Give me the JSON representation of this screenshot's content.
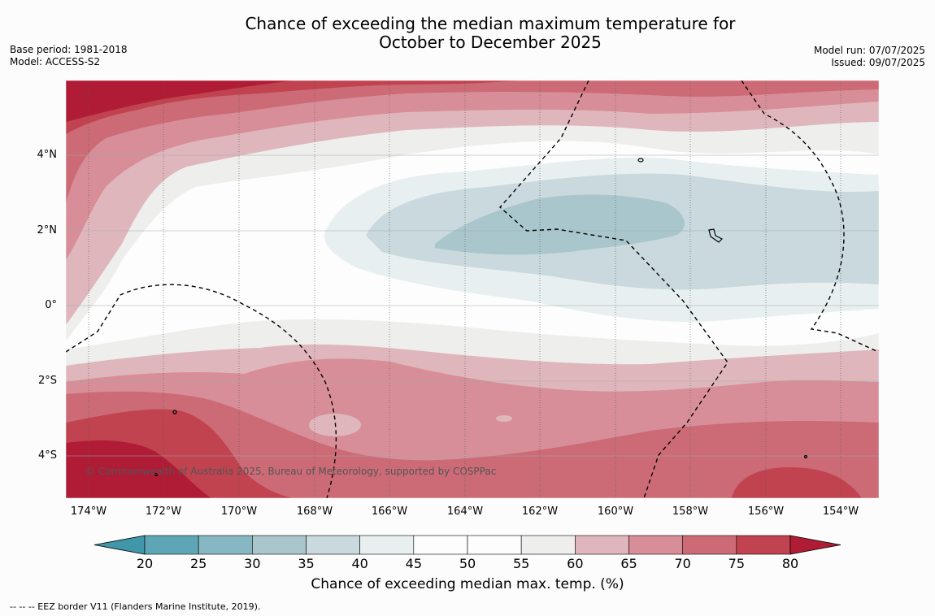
{
  "title": {
    "line1": "Chance of exceeding the median maximum temperature for",
    "line2": "October to December 2025"
  },
  "meta_left": {
    "base_period": "Base period: 1981-2018",
    "model": "Model: ACCESS-S2"
  },
  "meta_right": {
    "model_run": "Model run: 07/07/2025",
    "issued": "Issued: 09/07/2025"
  },
  "map": {
    "lat_ticks": [
      "4°N",
      "2°N",
      "0°",
      "2°S",
      "4°S"
    ],
    "lon_ticks": [
      "174°W",
      "172°W",
      "170°W",
      "168°W",
      "166°W",
      "164°W",
      "162°W",
      "160°W",
      "158°W",
      "156°W",
      "154°W"
    ],
    "copyright": "© Commonwealth of Australia 2025, Bureau of Meteorology, supported by COSPPac"
  },
  "colorbar": {
    "labels": [
      "20",
      "25",
      "30",
      "35",
      "40",
      "45",
      "50",
      "55",
      "60",
      "65",
      "70",
      "75",
      "80"
    ],
    "colors": [
      "#5ea6b6",
      "#86b7c3",
      "#a9c6cc",
      "#c9d9dd",
      "#e8eff1",
      "#fdfdfd",
      "#fdfdfd",
      "#eeeeec",
      "#e0b6bd",
      "#d78e98",
      "#cc6b75",
      "#c0434f"
    ],
    "low_extend_color": "#3f97a9",
    "high_extend_color": "#b01c36",
    "title": "Chance of exceeding median max. temp. (%)"
  },
  "footnote": "--  --  -- EEZ border V11 (Flanders Marine Institute, 2019)."
}
